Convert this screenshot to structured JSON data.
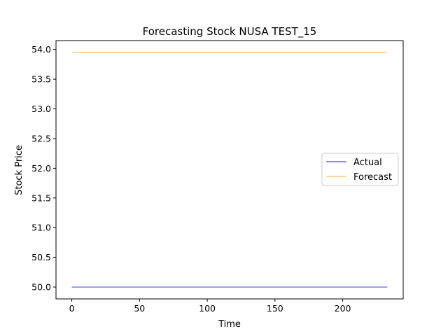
{
  "chart_data": {
    "type": "line",
    "title": "Forecasting Stock NUSA TEST_15",
    "xlabel": "Time",
    "ylabel": "Stock Price",
    "xlim": [
      -11.65,
      244.65
    ],
    "ylim": [
      49.8,
      54.15
    ],
    "x_ticks": [
      0,
      50,
      100,
      150,
      200
    ],
    "y_ticks": [
      50.0,
      50.5,
      51.0,
      51.5,
      52.0,
      52.5,
      53.0,
      53.5,
      54.0
    ],
    "y_tick_labels": [
      "50.0",
      "50.5",
      "51.0",
      "51.5",
      "52.0",
      "52.5",
      "53.0",
      "53.5",
      "54.0"
    ],
    "grid": false,
    "legend_position": "center-right",
    "series": [
      {
        "name": "Actual",
        "color": "#0000cc",
        "x": [
          0,
          233
        ],
        "values": [
          50.0,
          50.0
        ]
      },
      {
        "name": "Forecast",
        "color": "#ffa500",
        "x": [
          0,
          233
        ],
        "values": [
          53.95,
          53.95
        ]
      }
    ]
  }
}
